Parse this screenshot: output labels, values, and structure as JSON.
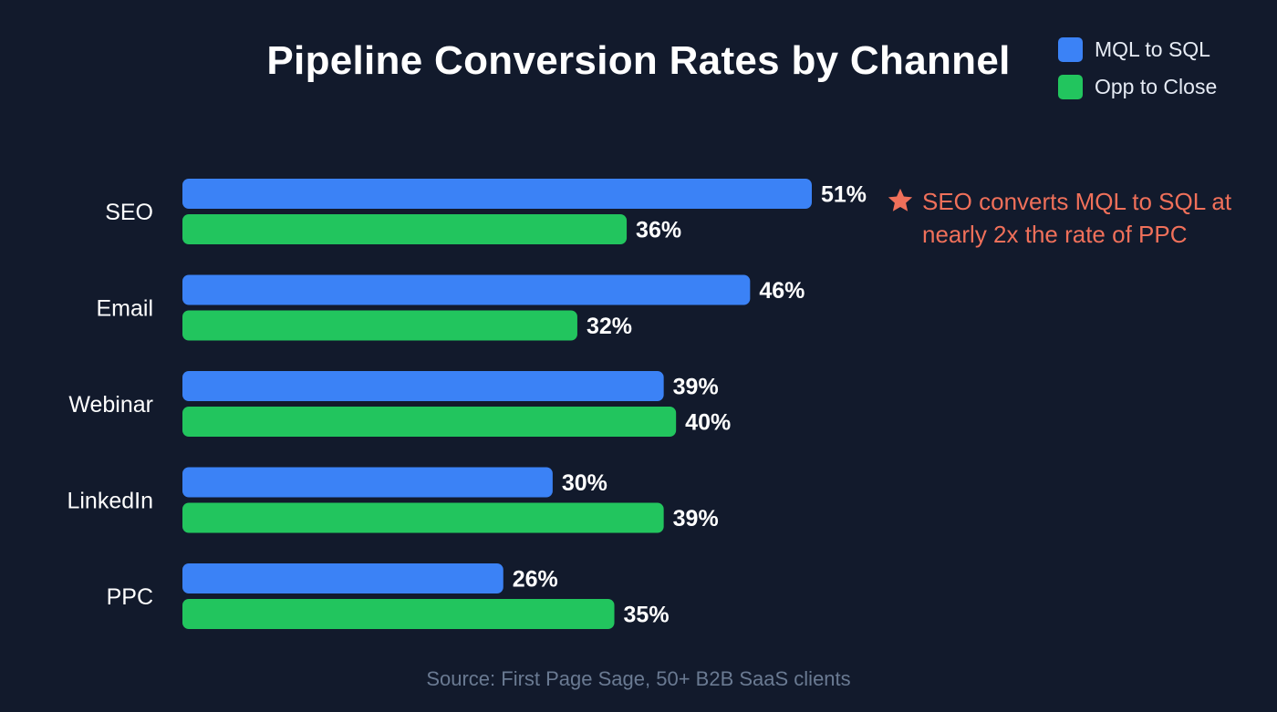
{
  "chart_data": {
    "type": "bar",
    "orientation": "horizontal",
    "title": "Pipeline Conversion Rates by Channel",
    "categories": [
      "SEO",
      "Email",
      "Webinar",
      "LinkedIn",
      "PPC"
    ],
    "series": [
      {
        "name": "MQL to SQL",
        "color": "#3b82f6",
        "values": [
          51,
          46,
          39,
          30,
          26
        ],
        "labels": [
          "51%",
          "46%",
          "39%",
          "30%",
          "26%"
        ]
      },
      {
        "name": "Opp to Close",
        "color": "#22c55e",
        "values": [
          36,
          32,
          40,
          39,
          35
        ],
        "labels": [
          "36%",
          "32%",
          "40%",
          "39%",
          "35%"
        ]
      }
    ],
    "xlim": [
      0,
      51
    ],
    "xlabel": "",
    "ylabel": "",
    "grid": false,
    "legend_position": "top-right",
    "annotation": "SEO converts MQL to SQL at nearly 2x the rate of PPC",
    "source": "Source: First Page Sage, 50+ B2B SaaS clients"
  },
  "colors": {
    "background": "#121a2c",
    "annotation": "#f0705a",
    "text": "#ffffff",
    "muted": "#6a7a92"
  }
}
